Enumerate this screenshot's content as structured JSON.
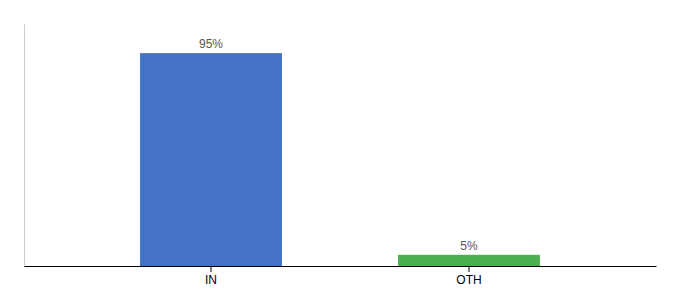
{
  "chart_data": {
    "type": "bar",
    "categories": [
      "IN",
      "OTH"
    ],
    "values": [
      95,
      5
    ],
    "value_labels": [
      "95%",
      "5%"
    ],
    "data_labels": true,
    "colors": [
      "#4472c4",
      "#4caf50"
    ],
    "ylim": [
      0,
      108
    ],
    "tick_labels": "x"
  }
}
